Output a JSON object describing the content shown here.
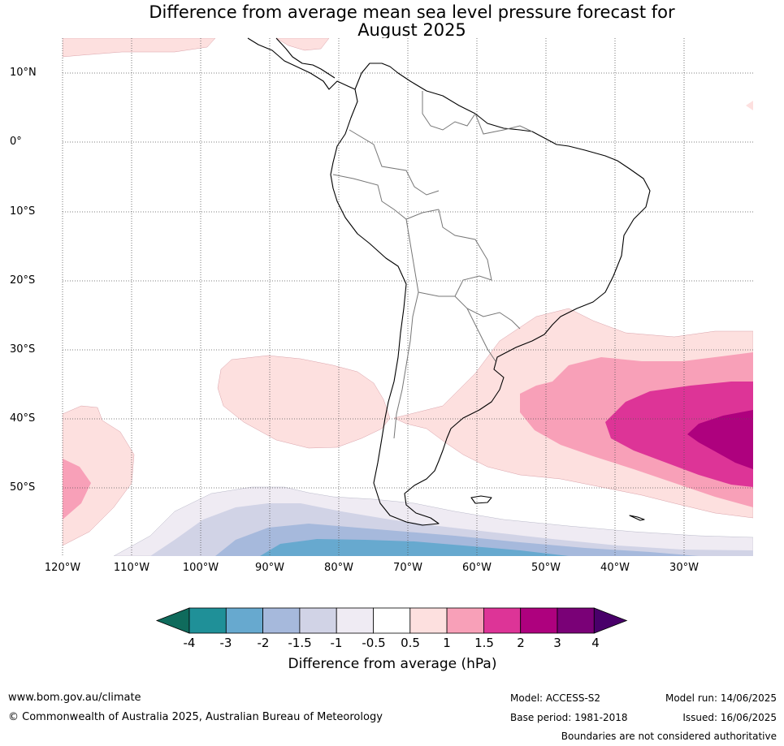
{
  "title_line1": "Difference from average mean sea level pressure forecast for",
  "title_line2": "August 2025",
  "lat_labels": [
    "10°N",
    "0°",
    "10°S",
    "20°S",
    "30°S",
    "40°S",
    "50°S"
  ],
  "lon_labels": [
    "120°W",
    "110°W",
    "100°W",
    "90°W",
    "80°W",
    "70°W",
    "60°W",
    "50°W",
    "40°W",
    "30°W"
  ],
  "colorbar": {
    "title": "Difference from average (hPa)",
    "ticks": [
      "-4",
      "-3",
      "-2",
      "-1.5",
      "-1",
      "-0.5",
      "0.5",
      "1",
      "1.5",
      "2",
      "3",
      "4"
    ],
    "colors": [
      "#0f6b5c",
      "#1f9098",
      "#67a9cf",
      "#a6b9dc",
      "#d1d3e6",
      "#efebf3",
      "#ffffff",
      "#fde0df",
      "#f8a0b8",
      "#dd3497",
      "#ae017e",
      "#7a0177",
      "#49006a"
    ]
  },
  "footer": {
    "website": "www.bom.gov.au/climate",
    "copyright": "© Commonwealth of Australia 2025, Australian Bureau of Meteorology",
    "model": "Model: ACCESS-S2",
    "base_period": "Base period: 1981-2018",
    "model_run": "Model run: 14/06/2025",
    "issued": "Issued: 16/06/2025",
    "boundaries_note": "Boundaries are not considered authoritative"
  }
}
